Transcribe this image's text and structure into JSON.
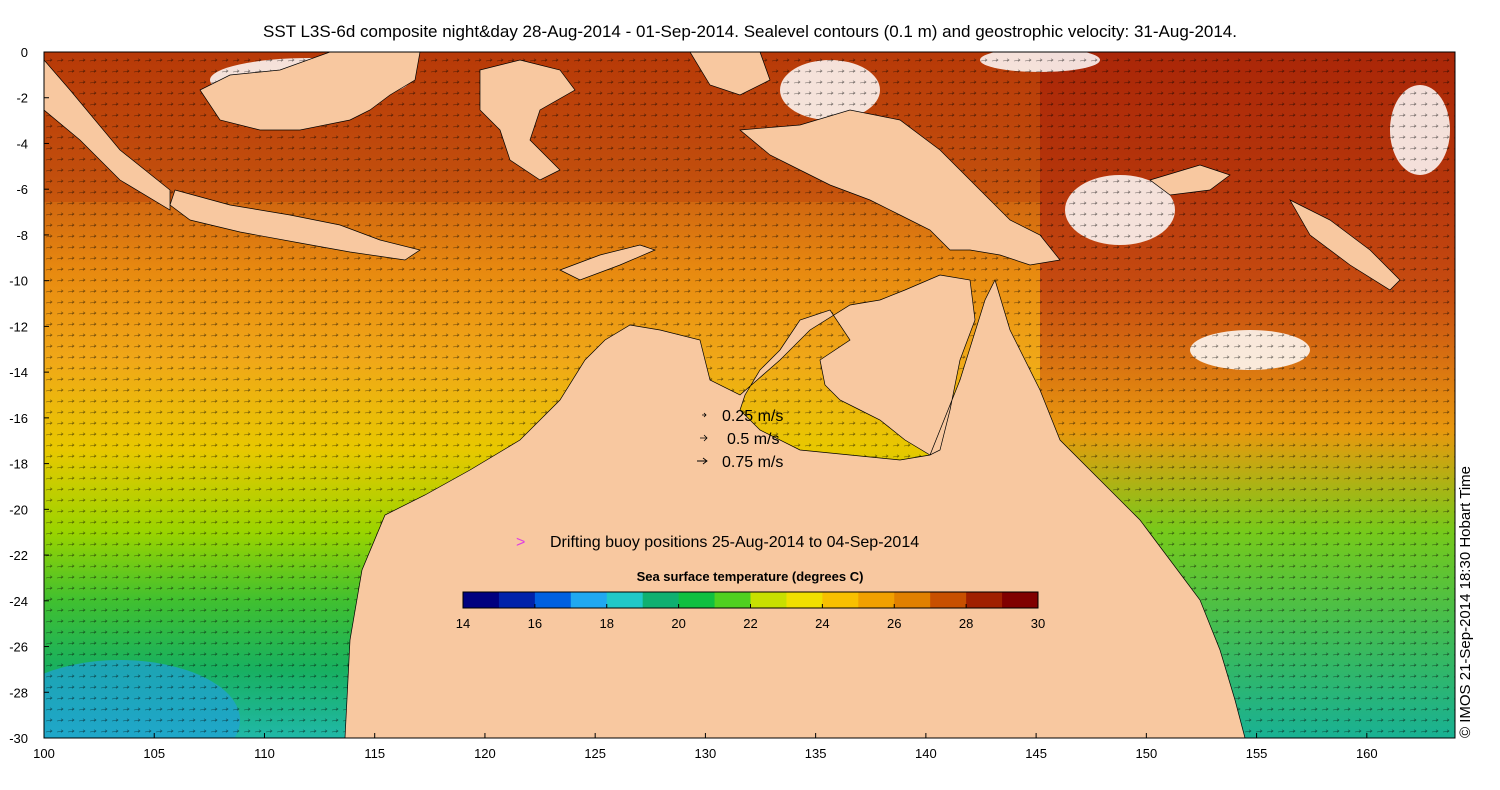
{
  "title": "SST L3S-6d composite night&day 28-Aug-2014 - 01-Sep-2014. Sealevel contours (0.1 m) and geostrophic velocity: 31-Aug-2014.",
  "axes": {
    "x_ticks": [
      "100",
      "105",
      "110",
      "115",
      "120",
      "125",
      "130",
      "135",
      "140",
      "145",
      "150",
      "155",
      "160"
    ],
    "x_values": [
      100,
      105,
      110,
      115,
      120,
      125,
      130,
      135,
      140,
      145,
      150,
      155,
      160
    ],
    "x_range": [
      100,
      164
    ],
    "y_ticks": [
      "0",
      "-2",
      "-4",
      "-6",
      "-8",
      "-10",
      "-12",
      "-14",
      "-16",
      "-18",
      "-20",
      "-22",
      "-24",
      "-26",
      "-28",
      "-30"
    ],
    "y_values": [
      0,
      -2,
      -4,
      -6,
      -8,
      -10,
      -12,
      -14,
      -16,
      -18,
      -20,
      -22,
      -24,
      -26,
      -28,
      -30
    ],
    "y_range": [
      -30,
      0
    ]
  },
  "velocity_legend": {
    "items": [
      {
        "label": "0.25 m/s",
        "speed": 0.25
      },
      {
        "label": "0.5 m/s",
        "speed": 0.5
      },
      {
        "label": "0.75 m/s",
        "speed": 0.75
      }
    ]
  },
  "buoy_legend": {
    "symbol": ">",
    "label": "Drifting buoy positions 25-Aug-2014 to 04-Sep-2014",
    "color": "#e040e0"
  },
  "colorbar": {
    "title": "Sea surface temperature (degrees C)",
    "min": 14,
    "max": 30,
    "ticks": [
      "14",
      "16",
      "18",
      "20",
      "22",
      "24",
      "26",
      "28",
      "30"
    ],
    "tick_values": [
      14,
      16,
      18,
      20,
      22,
      24,
      26,
      28,
      30
    ],
    "colors": [
      "#00007f",
      "#0022aa",
      "#0060e0",
      "#20a8f0",
      "#20c8c8",
      "#10b070",
      "#10c040",
      "#50d020",
      "#c8e000",
      "#f0e000",
      "#f8c000",
      "#f0a000",
      "#e08000",
      "#c85000",
      "#a02000",
      "#800000"
    ]
  },
  "credit": "© IMOS 21-Sep-2014 18:30 Hobart Time",
  "land_color": "#f8c8a0"
}
